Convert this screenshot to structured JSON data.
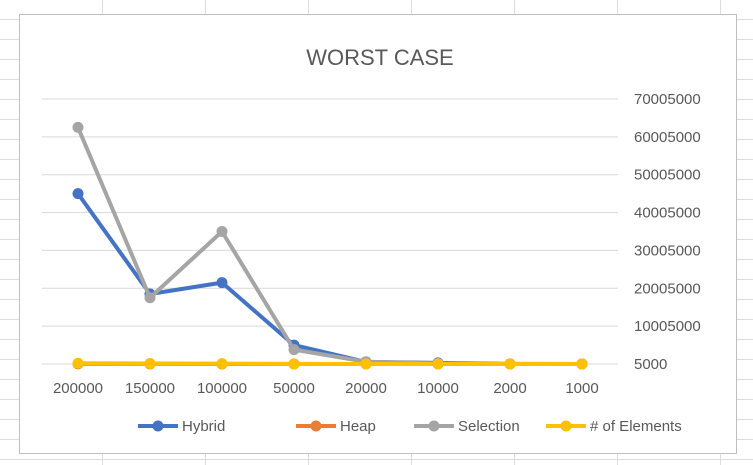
{
  "chart_data": {
    "type": "line",
    "title": "WORST CASE",
    "categories": [
      "200000",
      "150000",
      "100000",
      "50000",
      "20000",
      "10000",
      "2000",
      "1000"
    ],
    "y_ticks": [
      "5000",
      "10005000",
      "20005000",
      "30005000",
      "40005000",
      "50005000",
      "60005000",
      "70005000"
    ],
    "ylim": [
      5000,
      70005000
    ],
    "y_axis_position": "right",
    "grid": true,
    "legend_position": "bottom",
    "series": [
      {
        "name": "Hybrid",
        "color": "#4472C4",
        "values": [
          45000000,
          18500000,
          21500000,
          5000000,
          550000,
          300000,
          40000,
          20000
        ]
      },
      {
        "name": "Heap",
        "color": "#ED7D31",
        "values": [
          30000,
          25000,
          20000,
          9000,
          5000,
          3000,
          1000,
          500
        ]
      },
      {
        "name": "Selection",
        "color": "#A5A5A5",
        "values": [
          62500000,
          17500000,
          35000000,
          3800000,
          600000,
          150000,
          5000,
          1500
        ]
      },
      {
        "name": "# of Elements",
        "color": "#FFC000",
        "values": [
          200000,
          150000,
          100000,
          50000,
          20000,
          10000,
          2000,
          1000
        ]
      }
    ]
  }
}
